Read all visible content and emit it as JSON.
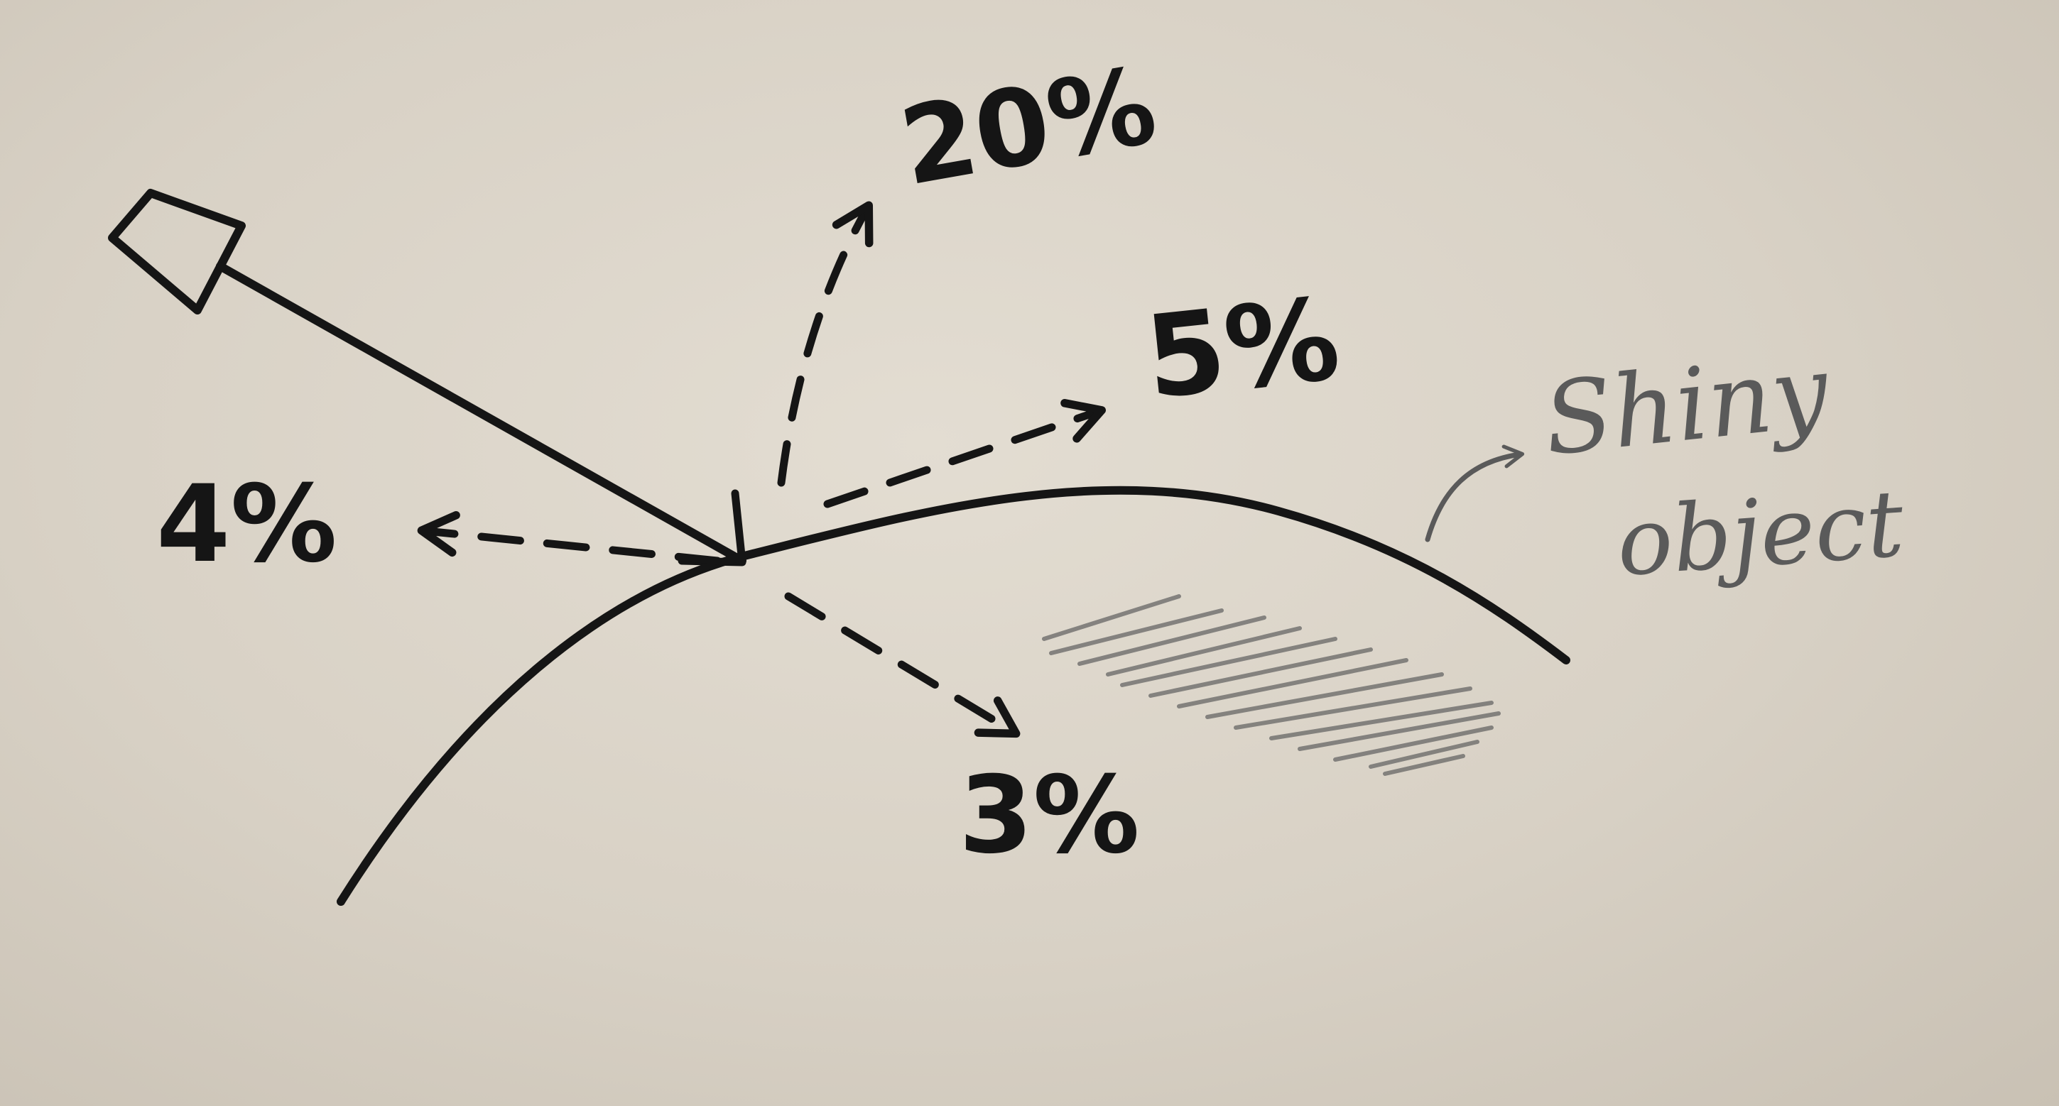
{
  "diagram": {
    "labels": {
      "reflect_left": "4%",
      "reflect_up": "20%",
      "reflect_right": "5%",
      "reflect_down": "3%",
      "object_line1": "Shiny",
      "object_line2": "object"
    },
    "colors": {
      "ink": "#151515",
      "pencil": "#5a5a5a",
      "paper": "#dcd5c9"
    }
  }
}
